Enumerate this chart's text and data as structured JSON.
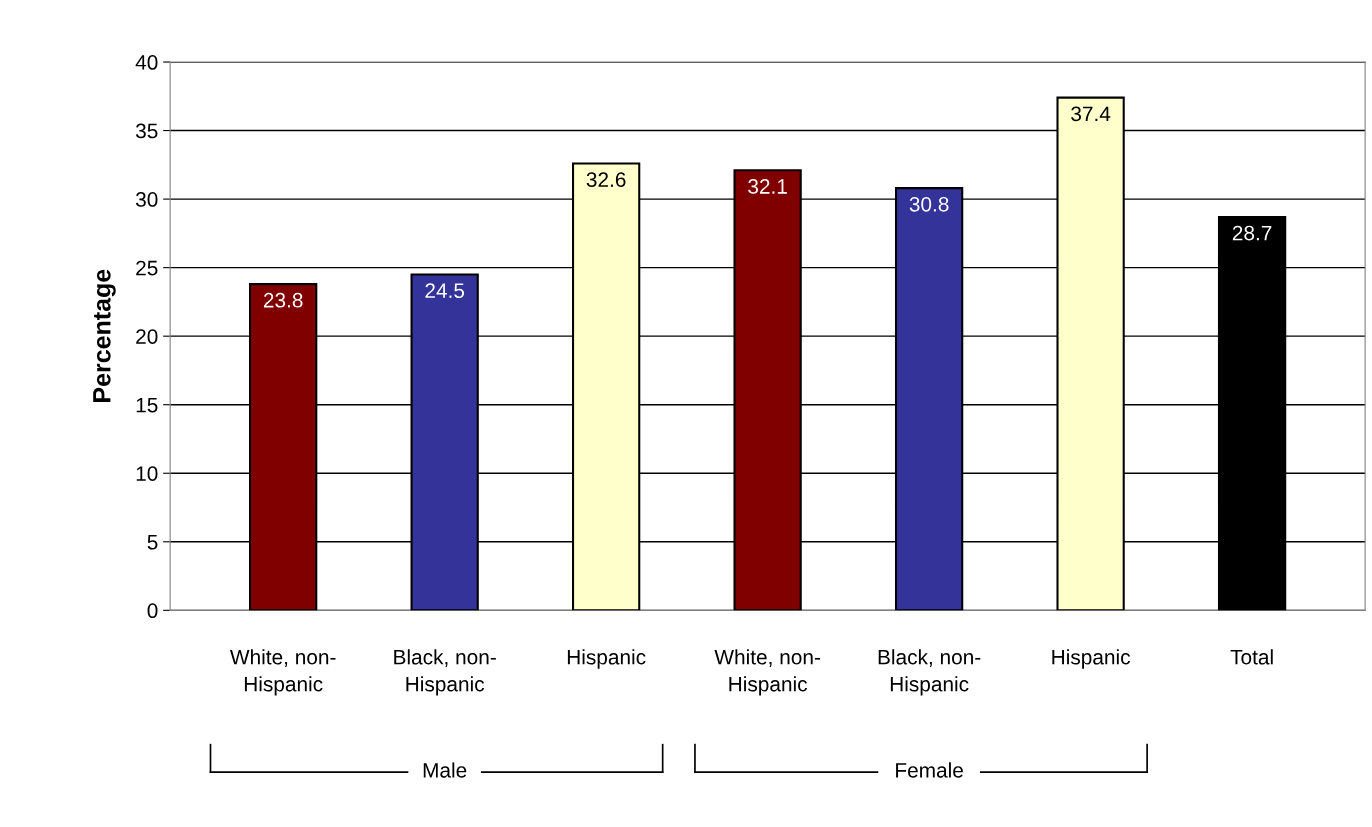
{
  "chart_data": {
    "type": "bar",
    "ylabel": "Percentage",
    "categories": [
      "White, non-Hispanic",
      "Black, non-Hispanic",
      "Hispanic",
      "White, non-Hispanic",
      "Black, non-Hispanic",
      "Hispanic",
      "Total"
    ],
    "values": [
      23.8,
      24.5,
      32.6,
      32.1,
      30.8,
      37.4,
      28.7
    ],
    "colors": [
      "#800000",
      "#333399",
      "#ffffcc",
      "#800000",
      "#333399",
      "#ffffcc",
      "#000000"
    ],
    "ylim": [
      0,
      40
    ],
    "yticks": [
      0,
      5,
      10,
      15,
      20,
      25,
      30,
      35,
      40
    ],
    "grid": "y",
    "legend": false,
    "data_labels": true,
    "annotations": [
      "Male",
      "Female"
    ]
  }
}
